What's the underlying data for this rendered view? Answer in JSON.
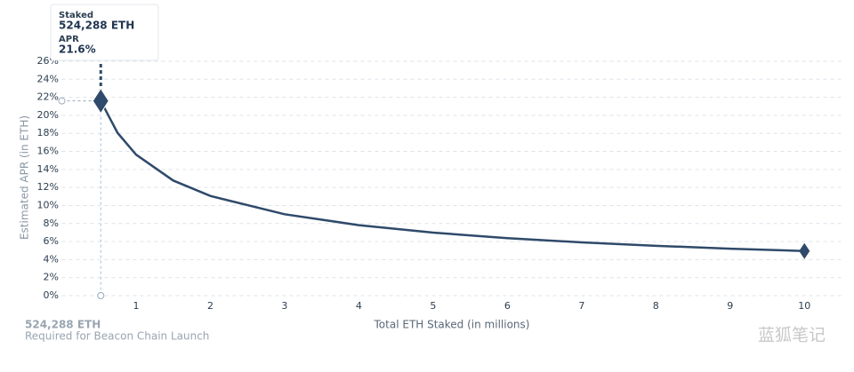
{
  "chart_data": {
    "type": "line",
    "y_label": "Estimated APR (in ETH)",
    "x_label": "Total ETH Staked  (in millions)",
    "x": [
      0.524288,
      0.75,
      1,
      1.5,
      2,
      3,
      4,
      5,
      6,
      7,
      8,
      9,
      10
    ],
    "values": [
      21.6,
      18.06,
      15.64,
      12.77,
      11.06,
      9.03,
      7.82,
      6.99,
      6.38,
      5.91,
      5.53,
      5.21,
      4.95
    ],
    "color": "#2f4a6a",
    "xlim": [
      0,
      10.5
    ],
    "xticks": [
      1,
      2,
      3,
      4,
      5,
      6,
      7,
      8,
      9,
      10
    ],
    "ylim": [
      0,
      26
    ],
    "yticks": [
      {
        "value": 0,
        "label": "0%"
      },
      {
        "value": 2,
        "label": "2%"
      },
      {
        "value": 4,
        "label": "4%"
      },
      {
        "value": 6,
        "label": "6%"
      },
      {
        "value": 8,
        "label": "8%"
      },
      {
        "value": 10,
        "label": "10%"
      },
      {
        "value": 12,
        "label": "12%"
      },
      {
        "value": 14,
        "label": "14%"
      },
      {
        "value": 16,
        "label": "16%"
      },
      {
        "value": 18,
        "label": "18%"
      },
      {
        "value": 20,
        "label": "20%"
      },
      {
        "value": 22,
        "label": "22%"
      },
      {
        "value": 24,
        "label": "24%"
      },
      {
        "value": 26,
        "label": "26%"
      }
    ],
    "grid": true,
    "tooltip": {
      "staked_title": "Staked",
      "staked_label": "524,288 ETH",
      "apr_title": "APR",
      "apr_label": "21.6%"
    },
    "annotation": {
      "value_label": "524,288 ETH",
      "text": "Required for Beacon Chain Launch"
    },
    "watermark": "蓝狐笔记"
  }
}
